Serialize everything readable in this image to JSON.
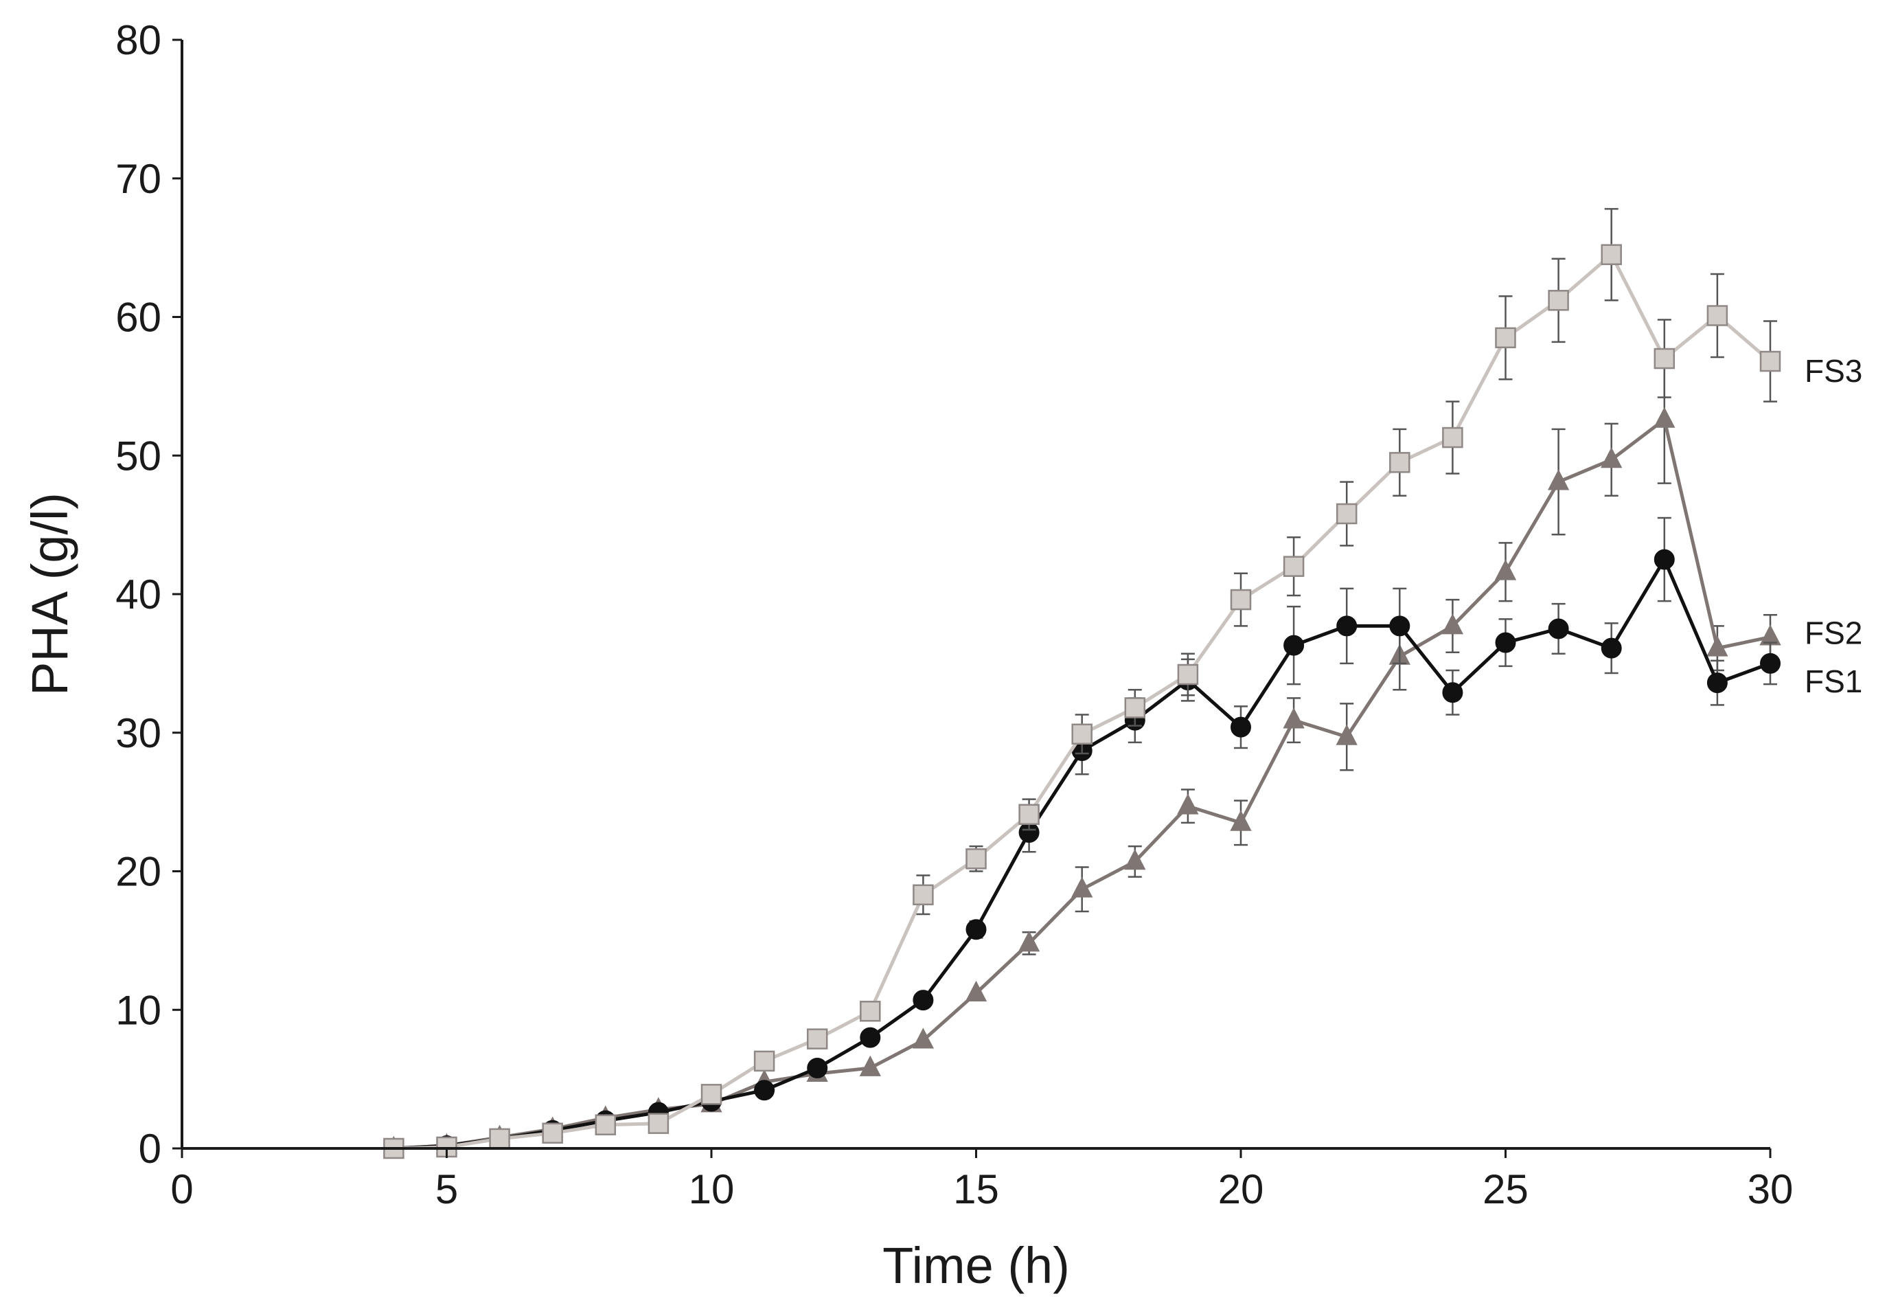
{
  "chart_data": {
    "type": "line",
    "title": "",
    "xlabel": "Time (h)",
    "ylabel": "PHA (g/l)",
    "xlim": [
      0,
      30
    ],
    "ylim": [
      0,
      80
    ],
    "xticks": [
      "0",
      "5",
      "10",
      "15",
      "20",
      "25",
      "30"
    ],
    "yticks": [
      "0",
      "10",
      "20",
      "30",
      "40",
      "50",
      "60",
      "70",
      "80"
    ],
    "grid": false,
    "legend": "inline labels at right end of each series",
    "series": [
      {
        "name": "FS1",
        "label": "FS1",
        "marker": "circle",
        "color": "#111111",
        "x": [
          4,
          5,
          6,
          7,
          8,
          9,
          10,
          11,
          12,
          13,
          14,
          15,
          16,
          17,
          18,
          19,
          20,
          21,
          22,
          23,
          24,
          25,
          26,
          27,
          28,
          29,
          30
        ],
        "values": [
          0,
          0.2,
          0.7,
          1.3,
          2.0,
          2.6,
          3.4,
          4.2,
          5.8,
          8.0,
          10.7,
          15.8,
          22.8,
          28.7,
          30.9,
          33.8,
          30.4,
          36.3,
          37.7,
          37.7,
          32.9,
          36.5,
          37.5,
          36.1,
          42.5,
          33.6,
          35.0
        ],
        "errors": [
          0,
          0,
          0,
          0,
          0,
          0,
          0,
          0,
          0,
          0,
          0,
          0.6,
          1.4,
          1.7,
          1.6,
          1.5,
          1.5,
          2.8,
          2.7,
          2.7,
          1.6,
          1.7,
          1.8,
          1.8,
          3.0,
          1.6,
          1.5
        ]
      },
      {
        "name": "FS2",
        "label": "FS2",
        "marker": "triangle",
        "color": "#7f7674",
        "x": [
          4,
          5,
          6,
          7,
          8,
          9,
          10,
          11,
          12,
          13,
          14,
          15,
          16,
          17,
          18,
          19,
          20,
          21,
          22,
          23,
          24,
          25,
          26,
          27,
          28,
          29,
          30
        ],
        "values": [
          0,
          0.2,
          0.8,
          1.4,
          2.2,
          2.8,
          3.2,
          4.8,
          5.4,
          5.8,
          7.8,
          11.2,
          14.8,
          18.7,
          20.7,
          24.7,
          23.5,
          30.9,
          29.7,
          35.5,
          37.7,
          41.6,
          48.1,
          49.7,
          52.6,
          36.1,
          36.9
        ],
        "errors": [
          0,
          0,
          0,
          0,
          0,
          0,
          0,
          0,
          0,
          0,
          0,
          0,
          0.8,
          1.6,
          1.1,
          1.2,
          1.6,
          1.6,
          2.4,
          2.4,
          1.9,
          2.1,
          3.8,
          2.6,
          4.6,
          1.6,
          1.6
        ]
      },
      {
        "name": "FS3",
        "label": "FS3",
        "marker": "square",
        "color": "#c9c2bf",
        "x": [
          4,
          5,
          6,
          7,
          8,
          9,
          10,
          11,
          12,
          13,
          14,
          15,
          16,
          17,
          18,
          19,
          20,
          21,
          22,
          23,
          24,
          25,
          26,
          27,
          28,
          29,
          30
        ],
        "values": [
          0,
          0.1,
          0.7,
          1.1,
          1.7,
          1.8,
          3.9,
          6.3,
          7.9,
          9.9,
          18.3,
          20.9,
          24.1,
          29.9,
          31.8,
          34.2,
          39.6,
          42.0,
          45.8,
          49.5,
          51.3,
          58.5,
          61.2,
          64.5,
          57.0,
          60.1,
          56.8
        ],
        "errors": [
          0,
          0,
          0,
          0,
          0,
          0,
          0,
          0,
          0,
          0,
          1.4,
          0.9,
          1.1,
          1.4,
          1.3,
          1.5,
          1.9,
          2.1,
          2.3,
          2.4,
          2.6,
          3.0,
          3.0,
          3.3,
          2.8,
          3.0,
          2.9
        ]
      }
    ]
  }
}
